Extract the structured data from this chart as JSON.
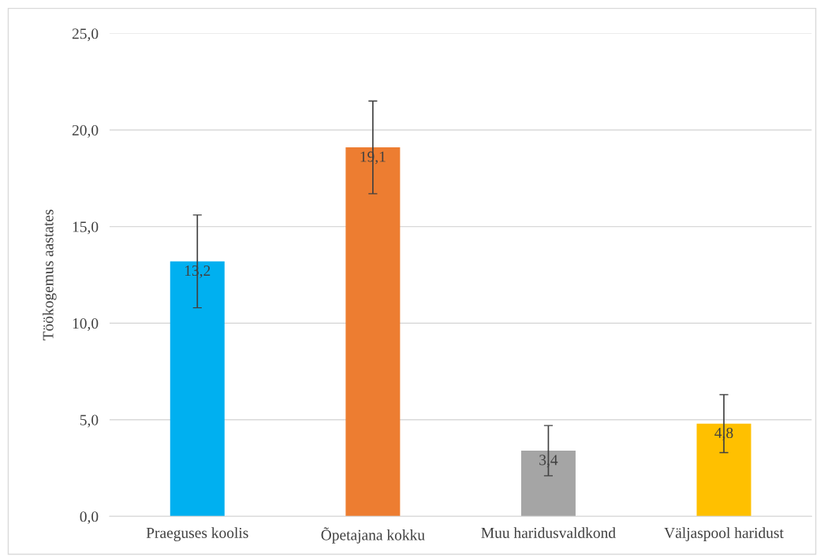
{
  "chart_data": {
    "type": "bar",
    "ylabel": "Töökogemus aastates",
    "categories": [
      "Praeguses koolis",
      "Õpetajana kokku",
      "Muu haridusvaldkond",
      "Väljaspool haridust"
    ],
    "values": [
      13.2,
      19.1,
      3.4,
      4.8
    ],
    "colors": [
      "#00b0f0",
      "#ed7d31",
      "#a5a5a5",
      "#ffc000"
    ],
    "errors": [
      2.4,
      2.4,
      1.3,
      1.5
    ],
    "value_labels": [
      "13,2",
      "19,1",
      "3,4",
      "4,8"
    ],
    "ylim": [
      0,
      25
    ],
    "yticks": [
      {
        "value": 0,
        "label": "0,0"
      },
      {
        "value": 5,
        "label": "5,0"
      },
      {
        "value": 10,
        "label": "10,0"
      },
      {
        "value": 15,
        "label": "15,0"
      },
      {
        "value": 20,
        "label": "20,0"
      },
      {
        "value": 25,
        "label": "25,0"
      }
    ],
    "grid": "y",
    "legend": false
  }
}
